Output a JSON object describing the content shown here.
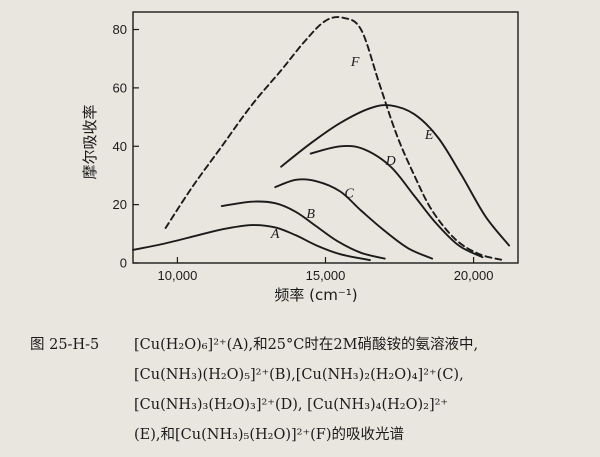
{
  "chart_data": {
    "type": "line",
    "xlabel": "频率 (cm⁻¹)",
    "ylabel": "摩尔吸收率",
    "xlim": [
      8500,
      21500
    ],
    "ylim": [
      0,
      86
    ],
    "x_ticks": [
      10000,
      15000,
      20000
    ],
    "x_tick_labels": [
      "10,000",
      "15,000",
      "20,000"
    ],
    "y_ticks": [
      0,
      20,
      40,
      60,
      80
    ],
    "y_tick_labels": [
      "0",
      "20",
      "40",
      "60",
      "80"
    ],
    "grid": false,
    "legend": "none",
    "series": [
      {
        "name": "A",
        "style": "solid",
        "points": [
          [
            8500,
            4.5
          ],
          [
            9500,
            6.5
          ],
          [
            10500,
            9
          ],
          [
            11500,
            11.5
          ],
          [
            12500,
            13
          ],
          [
            13300,
            12.2
          ],
          [
            14000,
            9.5
          ],
          [
            14700,
            6
          ],
          [
            15500,
            3
          ],
          [
            16500,
            1
          ]
        ]
      },
      {
        "name": "B",
        "style": "solid",
        "points": [
          [
            11500,
            19.5
          ],
          [
            12500,
            21
          ],
          [
            13300,
            20.5
          ],
          [
            14000,
            17.5
          ],
          [
            14700,
            12.5
          ],
          [
            15400,
            7.5
          ],
          [
            16200,
            3.5
          ],
          [
            17000,
            1.5
          ]
        ]
      },
      {
        "name": "C",
        "style": "solid",
        "points": [
          [
            13300,
            26
          ],
          [
            14000,
            28.5
          ],
          [
            14700,
            28
          ],
          [
            15500,
            24.5
          ],
          [
            16200,
            18
          ],
          [
            17000,
            11
          ],
          [
            17800,
            5
          ],
          [
            18600,
            1.5
          ]
        ]
      },
      {
        "name": "D",
        "style": "solid",
        "points": [
          [
            14500,
            37.5
          ],
          [
            15500,
            40
          ],
          [
            16300,
            39
          ],
          [
            17200,
            33
          ],
          [
            18000,
            23
          ],
          [
            18700,
            14
          ],
          [
            19500,
            6
          ],
          [
            20300,
            2
          ]
        ]
      },
      {
        "name": "E",
        "style": "solid",
        "points": [
          [
            13500,
            33
          ],
          [
            14500,
            41
          ],
          [
            15500,
            48
          ],
          [
            16500,
            53
          ],
          [
            17200,
            54
          ],
          [
            18000,
            51
          ],
          [
            18800,
            43
          ],
          [
            19600,
            30
          ],
          [
            20400,
            16
          ],
          [
            21200,
            6
          ]
        ]
      },
      {
        "name": "F",
        "style": "dashed",
        "points": [
          [
            9600,
            12
          ],
          [
            10500,
            26
          ],
          [
            11500,
            40
          ],
          [
            12500,
            54
          ],
          [
            13500,
            66
          ],
          [
            14300,
            76
          ],
          [
            15000,
            83
          ],
          [
            15600,
            84
          ],
          [
            16200,
            80
          ],
          [
            16800,
            62
          ],
          [
            17400,
            44
          ],
          [
            18000,
            30
          ],
          [
            18600,
            18
          ],
          [
            19400,
            8
          ],
          [
            20200,
            3
          ],
          [
            21000,
            1
          ]
        ]
      }
    ],
    "curve_label_positions": {
      "A": [
        13300,
        8.5
      ],
      "B": [
        14500,
        15.5
      ],
      "C": [
        15800,
        22.5
      ],
      "D": [
        17200,
        33.5
      ],
      "E": [
        18500,
        42.5
      ],
      "F": [
        16000,
        67.5
      ]
    }
  },
  "caption": {
    "figure_number": "图 25-H-5",
    "lines": [
      "[Cu(H₂O)₆]²⁺(A),和25°C时在2M硝酸铵的氨溶液中,",
      "[Cu(NH₃)(H₂O)₅]²⁺(B),[Cu(NH₃)₂(H₂O)₄]²⁺(C),",
      "[Cu(NH₃)₃(H₂O)₃]²⁺(D), [Cu(NH₃)₄(H₂O)₂]²⁺",
      "(E),和[Cu(NH₃)₅(H₂O)]²⁺(F)的吸收光谱"
    ]
  }
}
